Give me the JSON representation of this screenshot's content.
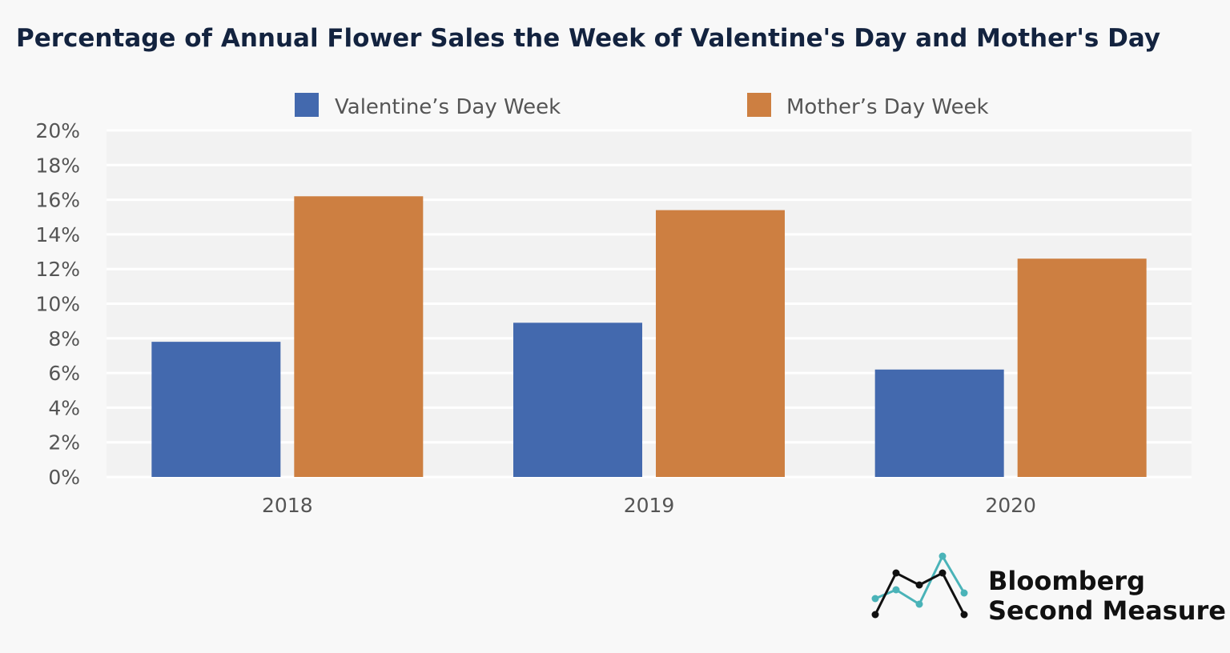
{
  "chart_data": {
    "type": "bar",
    "title": "Percentage of Annual Flower Sales the Week of Valentine's Day and Mother's Day",
    "categories": [
      "2018",
      "2019",
      "2020"
    ],
    "series": [
      {
        "name": "Valentine’s Day Week",
        "values": [
          7.8,
          8.9,
          6.2
        ],
        "color": "#4369ae"
      },
      {
        "name": "Mother’s Day Week",
        "values": [
          16.2,
          15.4,
          12.6
        ],
        "color": "#cd7f41"
      }
    ],
    "ylim": [
      0,
      20
    ],
    "yticks": [
      0,
      2,
      4,
      6,
      8,
      10,
      12,
      14,
      16,
      18,
      20
    ],
    "ytick_labels": [
      "0%",
      "2%",
      "4%",
      "6%",
      "8%",
      "10%",
      "12%",
      "14%",
      "16%",
      "18%",
      "20%"
    ],
    "xlabel": "",
    "ylabel": "",
    "grid": true,
    "legend": "top"
  },
  "logo": {
    "line1": "Bloomberg",
    "line2": "Second Measure",
    "colors": {
      "dark": "#111111",
      "teal": "#4ab3b8"
    }
  }
}
